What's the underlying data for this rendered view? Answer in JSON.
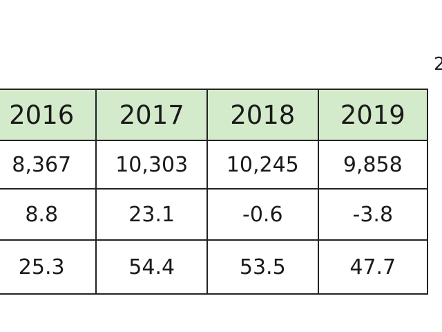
{
  "corner_text": "2",
  "table": {
    "headers": [
      "2016",
      "2017",
      "2018",
      "2019"
    ],
    "rows": [
      [
        "8,367",
        "10,303",
        "10,245",
        "9,858"
      ],
      [
        "8.8",
        "23.1",
        "-0.6",
        "-3.8"
      ],
      [
        "25.3",
        "54.4",
        "53.5",
        "47.7"
      ]
    ]
  },
  "colors": {
    "header_bg": "#d4ebcb",
    "border": "#222222",
    "text": "#1a1a1a"
  }
}
